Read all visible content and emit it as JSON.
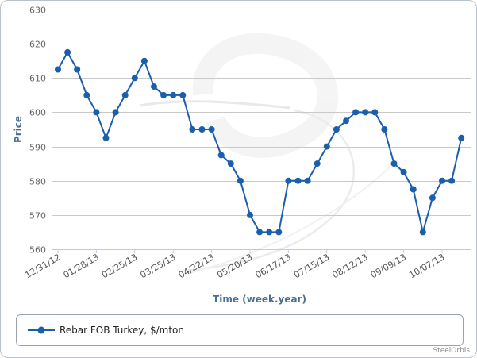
{
  "chart_data": {
    "type": "line",
    "xlabel": "Time (week.year)",
    "ylabel": "Price",
    "ylim": [
      560,
      630
    ],
    "y_ticks": [
      560,
      570,
      580,
      590,
      600,
      610,
      620,
      630
    ],
    "x_tick_labels": [
      "12/31/12",
      "01/28/13",
      "02/25/13",
      "03/25/13",
      "04/22/13",
      "05/20/13",
      "06/17/13",
      "07/15/13",
      "08/12/13",
      "09/09/13",
      "10/07/13"
    ],
    "x_tick_every": 4,
    "grid": "horizontal",
    "legend_position": "bottom",
    "series": [
      {
        "name": "Rebar FOB Turkey, $/mton",
        "color": "#1b5eab",
        "values": [
          612.5,
          617.5,
          612.5,
          605,
          600,
          592.5,
          600,
          605,
          610,
          615,
          607.5,
          605,
          605,
          605,
          595,
          595,
          595,
          587.5,
          585,
          580,
          570,
          565,
          565,
          565,
          580,
          580,
          580,
          585,
          590,
          595,
          597.5,
          600,
          600,
          600,
          595,
          585,
          582.5,
          577.5,
          565,
          575,
          580,
          580,
          592.5
        ]
      }
    ]
  },
  "watermark_text": "SteelOrbis",
  "credit": "SteelOrbis"
}
